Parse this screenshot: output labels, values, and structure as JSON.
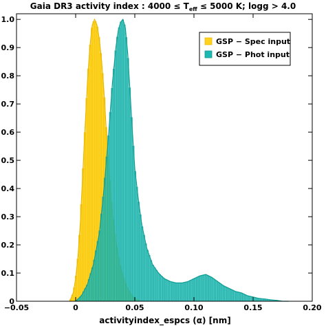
{
  "chart_data": {
    "type": "area",
    "title": "Gaia DR3 activity index :  4000 ≤ T",
    "title_sub": "eff",
    "title_rest": " ≤ 5000 K;  logg > 4.0",
    "xlabel": "activityindex_espcs (α) [nm]",
    "ylabel": "",
    "xlim": [
      -0.05,
      0.2
    ],
    "ylim": [
      0,
      1.02
    ],
    "x_ticks": [
      -0.05,
      0.0,
      0.05,
      0.1,
      0.15,
      0.2
    ],
    "x_tick_labels": [
      "−0.05",
      "0",
      "0.05",
      "0.10",
      "0.15",
      "0.20"
    ],
    "y_ticks": [
      0,
      0.1,
      0.2,
      0.3,
      0.4,
      0.5,
      0.6,
      0.7,
      0.8,
      0.9,
      1.0
    ],
    "y_tick_labels": [
      "0",
      "0.1",
      "0.2",
      "0.3",
      "0.4",
      "0.5",
      "0.6",
      "0.7",
      "0.8",
      "0.9",
      "1.0"
    ],
    "grid": false,
    "legend_position": "top-right",
    "series": [
      {
        "name": "GSP − Spec input",
        "color": "#FFD21F",
        "edge_color": "#E8B800",
        "x": [
          -0.005,
          -0.002,
          0.0,
          0.002,
          0.004,
          0.006,
          0.008,
          0.01,
          0.012,
          0.014,
          0.016,
          0.018,
          0.02,
          0.022,
          0.024,
          0.026,
          0.028,
          0.03,
          0.032,
          0.034,
          0.036,
          0.038,
          0.04,
          0.042,
          0.044,
          0.046,
          0.048,
          0.05,
          0.052,
          0.055
        ],
        "y": [
          0.0,
          0.03,
          0.08,
          0.16,
          0.28,
          0.45,
          0.62,
          0.78,
          0.9,
          0.98,
          1.0,
          0.98,
          0.93,
          0.85,
          0.74,
          0.6,
          0.47,
          0.36,
          0.28,
          0.21,
          0.16,
          0.12,
          0.09,
          0.065,
          0.045,
          0.03,
          0.018,
          0.01,
          0.005,
          0.0
        ]
      },
      {
        "name": "GSP − Phot input",
        "color": "#1FB8B0",
        "edge_color": "#0E9C95",
        "x": [
          0.0,
          0.005,
          0.01,
          0.015,
          0.02,
          0.024,
          0.028,
          0.031,
          0.034,
          0.036,
          0.038,
          0.04,
          0.042,
          0.044,
          0.046,
          0.048,
          0.05,
          0.053,
          0.056,
          0.06,
          0.065,
          0.07,
          0.075,
          0.08,
          0.085,
          0.09,
          0.095,
          0.1,
          0.105,
          0.11,
          0.115,
          0.12,
          0.125,
          0.13,
          0.135,
          0.14,
          0.145,
          0.15,
          0.155,
          0.16,
          0.165,
          0.17,
          0.175,
          0.18
        ],
        "y": [
          0.0,
          0.02,
          0.06,
          0.13,
          0.24,
          0.4,
          0.6,
          0.77,
          0.9,
          0.96,
          0.99,
          1.0,
          0.97,
          0.88,
          0.74,
          0.6,
          0.47,
          0.36,
          0.27,
          0.19,
          0.13,
          0.1,
          0.08,
          0.07,
          0.065,
          0.065,
          0.07,
          0.08,
          0.09,
          0.095,
          0.085,
          0.07,
          0.055,
          0.045,
          0.035,
          0.03,
          0.02,
          0.015,
          0.01,
          0.008,
          0.005,
          0.003,
          0.0,
          0.0
        ]
      }
    ]
  }
}
